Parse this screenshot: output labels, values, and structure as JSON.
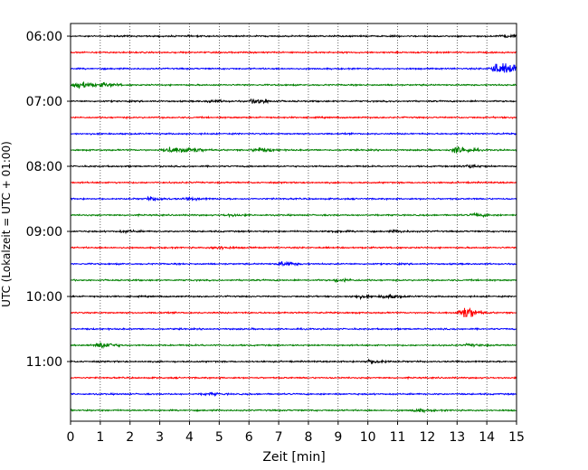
{
  "chart_data": {
    "type": "line",
    "title": "",
    "xlabel": "Zeit  [min]",
    "ylabel": "UTC (Lokalzeit = UTC + 01:00)",
    "xlim": [
      0,
      15
    ],
    "x_ticks": [
      "0",
      "1",
      "2",
      "3",
      "4",
      "5",
      "6",
      "7",
      "8",
      "9",
      "10",
      "11",
      "12",
      "13",
      "14",
      "15"
    ],
    "y_ticks": [
      "06:00",
      "07:00",
      "08:00",
      "09:00",
      "10:00",
      "11:00"
    ],
    "grid": "vertical dotted",
    "trace_color_cycle": [
      "#000000",
      "#ff0000",
      "#0000ff",
      "#008000"
    ],
    "row_interval_min": 15,
    "series": [
      {
        "start": "06:00",
        "color": "#000000",
        "events": [
          {
            "t": 14.6,
            "amp": 0.25
          }
        ]
      },
      {
        "start": "06:15",
        "color": "#ff0000",
        "events": []
      },
      {
        "start": "06:30",
        "color": "#0000ff",
        "events": [
          {
            "t": 14.3,
            "amp": 0.9
          },
          {
            "t": 14.8,
            "amp": 0.5
          }
        ]
      },
      {
        "start": "06:45",
        "color": "#008000",
        "events": [
          {
            "t": 0.3,
            "amp": 0.55
          },
          {
            "t": 1.1,
            "amp": 0.25
          }
        ]
      },
      {
        "start": "07:00",
        "color": "#000000",
        "events": [
          {
            "t": 6.2,
            "amp": 0.35
          },
          {
            "t": 4.7,
            "amp": 0.15
          }
        ]
      },
      {
        "start": "07:15",
        "color": "#ff0000",
        "events": []
      },
      {
        "start": "07:30",
        "color": "#0000ff",
        "events": []
      },
      {
        "start": "07:45",
        "color": "#008000",
        "events": [
          {
            "t": 3.3,
            "amp": 0.5
          },
          {
            "t": 3.9,
            "amp": 0.45
          },
          {
            "t": 6.3,
            "amp": 0.35
          },
          {
            "t": 13.0,
            "amp": 0.55
          }
        ]
      },
      {
        "start": "08:00",
        "color": "#000000",
        "events": [
          {
            "t": 13.3,
            "amp": 0.25
          }
        ]
      },
      {
        "start": "08:15",
        "color": "#ff0000",
        "events": []
      },
      {
        "start": "08:30",
        "color": "#0000ff",
        "events": [
          {
            "t": 2.7,
            "amp": 0.25
          },
          {
            "t": 4.0,
            "amp": 0.15
          }
        ]
      },
      {
        "start": "08:45",
        "color": "#008000",
        "events": [
          {
            "t": 5.3,
            "amp": 0.15
          },
          {
            "t": 13.6,
            "amp": 0.2
          }
        ]
      },
      {
        "start": "09:00",
        "color": "#000000",
        "events": [
          {
            "t": 1.8,
            "amp": 0.15
          },
          {
            "t": 8.8,
            "amp": 0.12
          },
          {
            "t": 10.9,
            "amp": 0.12
          }
        ]
      },
      {
        "start": "09:15",
        "color": "#ff0000",
        "events": [
          {
            "t": 4.9,
            "amp": 0.2
          }
        ]
      },
      {
        "start": "09:30",
        "color": "#0000ff",
        "events": [
          {
            "t": 7.1,
            "amp": 0.3
          }
        ]
      },
      {
        "start": "09:45",
        "color": "#008000",
        "events": [
          {
            "t": 9.0,
            "amp": 0.2
          }
        ]
      },
      {
        "start": "10:00",
        "color": "#000000",
        "events": [
          {
            "t": 9.6,
            "amp": 0.2
          },
          {
            "t": 10.6,
            "amp": 0.3
          }
        ]
      },
      {
        "start": "10:15",
        "color": "#ff0000",
        "events": [
          {
            "t": 13.2,
            "amp": 0.95
          }
        ]
      },
      {
        "start": "10:30",
        "color": "#0000ff",
        "events": []
      },
      {
        "start": "10:45",
        "color": "#008000",
        "events": [
          {
            "t": 1.0,
            "amp": 0.5
          },
          {
            "t": 13.4,
            "amp": 0.15
          }
        ]
      },
      {
        "start": "11:00",
        "color": "#000000",
        "events": [
          {
            "t": 10.1,
            "amp": 0.3
          }
        ]
      },
      {
        "start": "11:15",
        "color": "#ff0000",
        "events": []
      },
      {
        "start": "11:30",
        "color": "#0000ff",
        "events": [
          {
            "t": 4.6,
            "amp": 0.15
          }
        ]
      },
      {
        "start": "11:45",
        "color": "#008000",
        "events": [
          {
            "t": 11.6,
            "amp": 0.2
          }
        ]
      }
    ]
  }
}
